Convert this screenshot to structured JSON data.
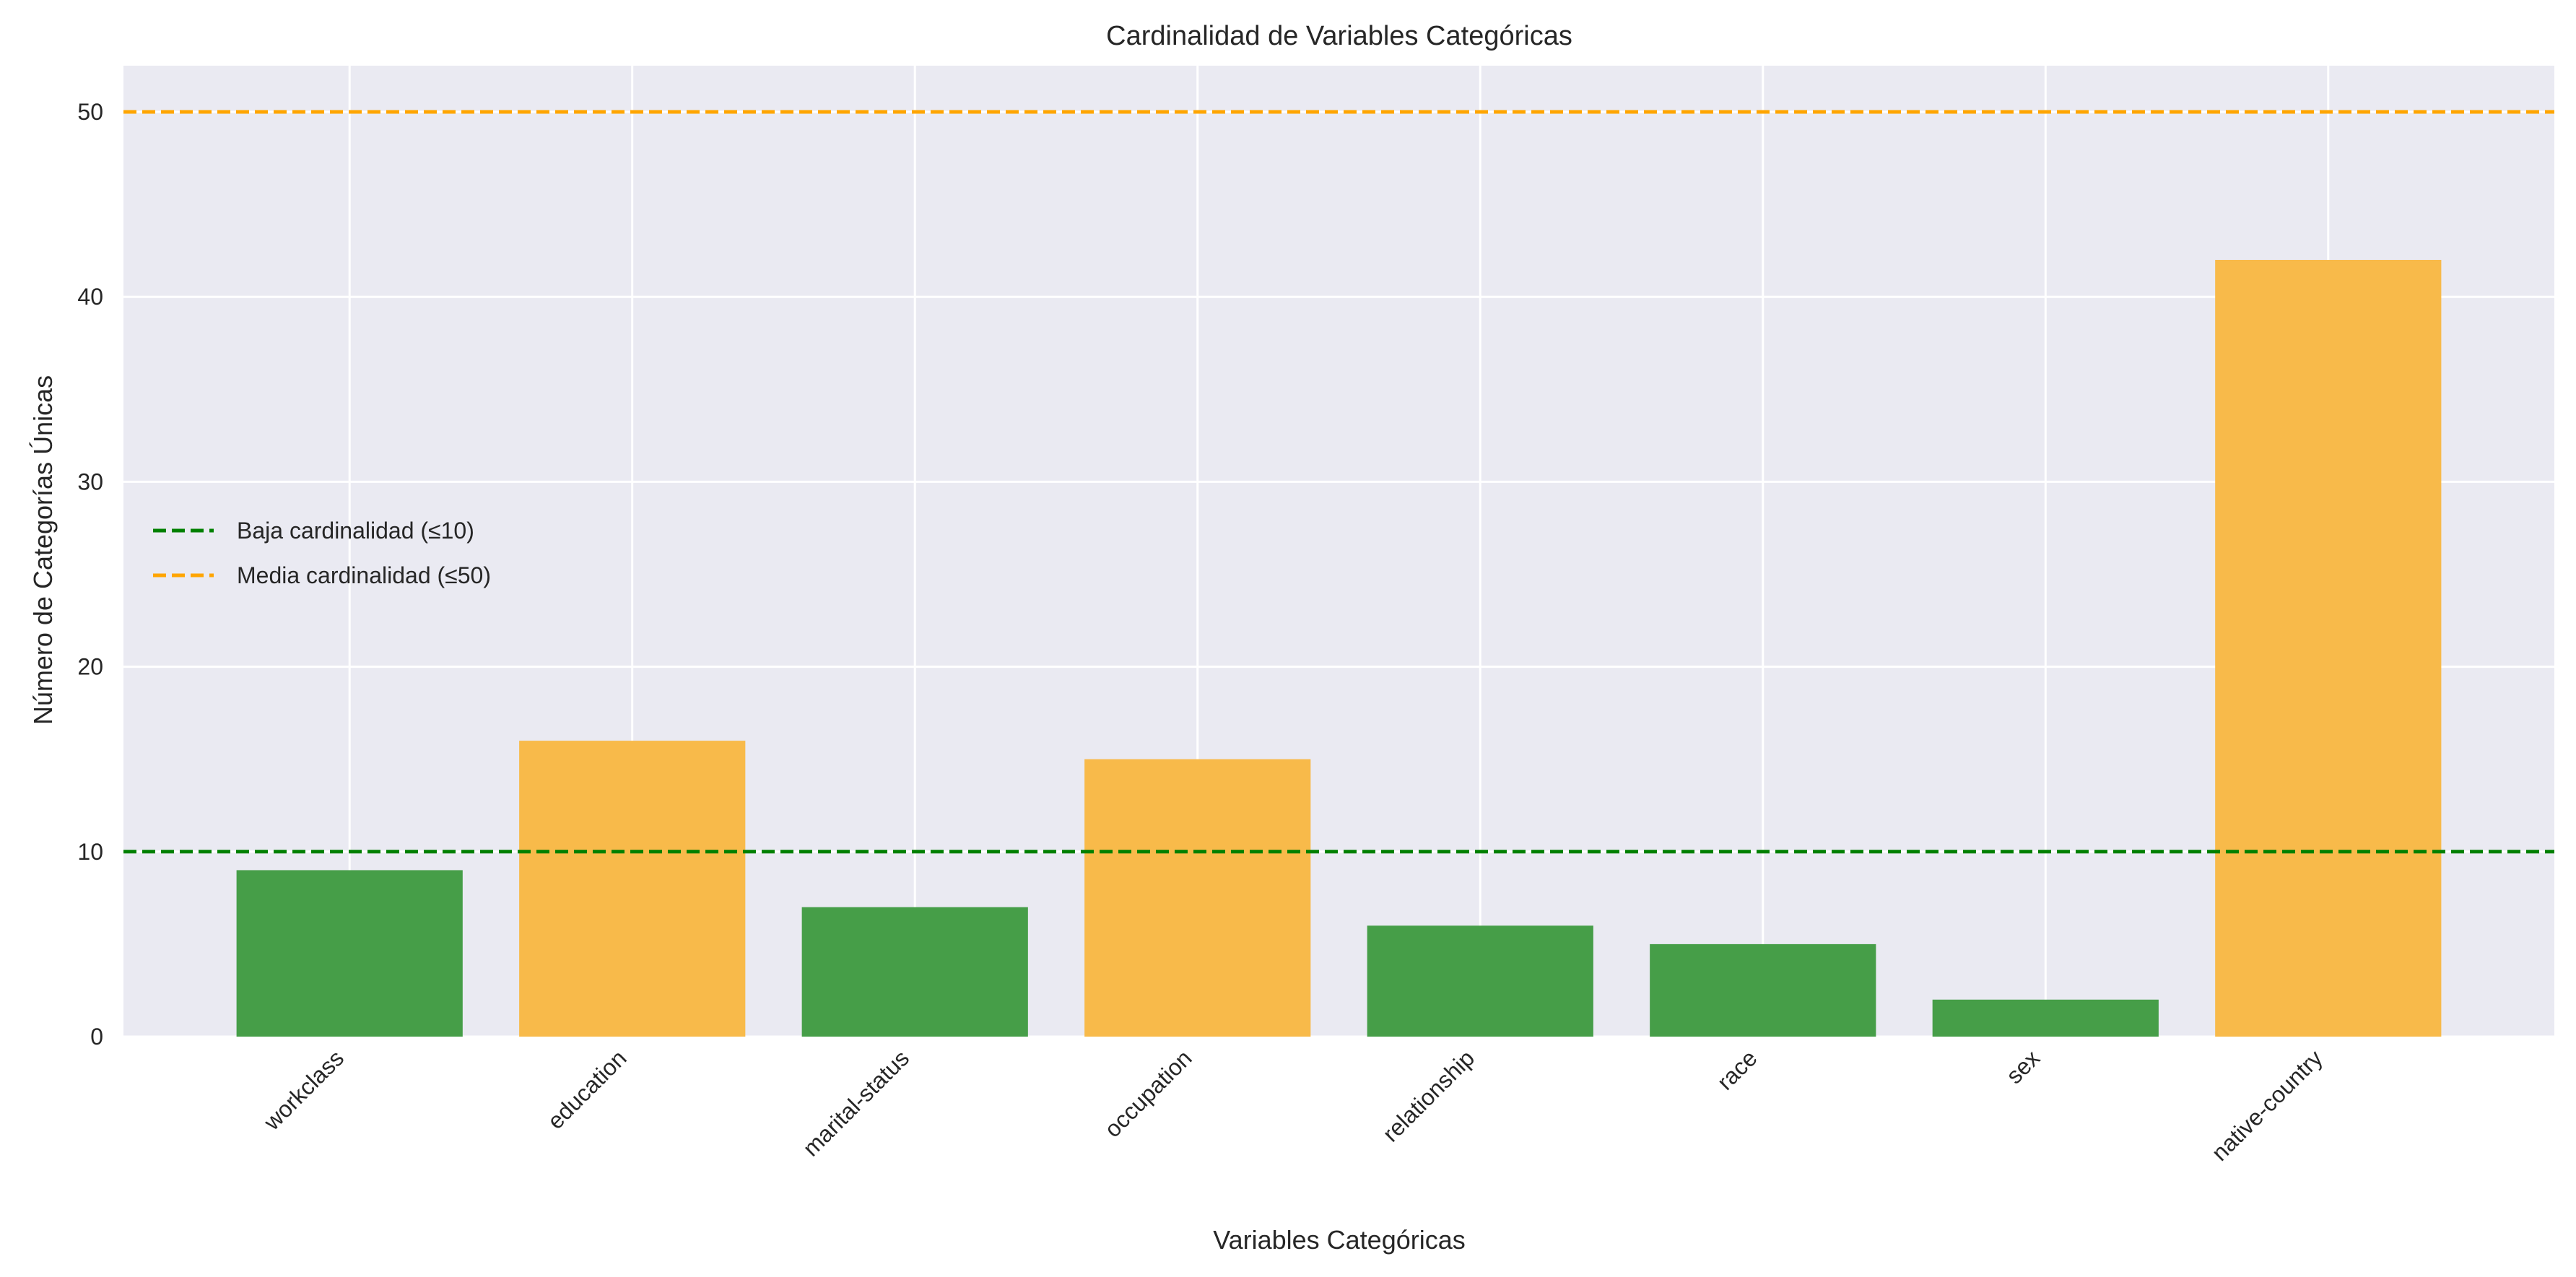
{
  "chart_data": {
    "type": "bar",
    "title": "Cardinalidad de Variables Categóricas",
    "xlabel": "Variables Categóricas",
    "ylabel": "Número de Categorías Únicas",
    "categories": [
      "workclass",
      "education",
      "marital-status",
      "occupation",
      "relationship",
      "race",
      "sex",
      "native-country"
    ],
    "values": [
      9,
      16,
      7,
      15,
      6,
      5,
      2,
      42
    ],
    "bar_colors": [
      "#469e48",
      "#f8ba4a",
      "#469e48",
      "#f8ba4a",
      "#469e48",
      "#469e48",
      "#469e48",
      "#f8ba4a"
    ],
    "ylim": [
      0,
      52.5
    ],
    "yticks": [
      0,
      10,
      20,
      30,
      40,
      50
    ],
    "grid": true,
    "background": "#eaeaf2",
    "reference_lines": [
      {
        "name": "Baja cardinalidad (≤10)",
        "y": 10,
        "color": "#008000",
        "style": "dashed"
      },
      {
        "name": "Media cardinalidad (≤50)",
        "y": 50,
        "color": "#ffa500",
        "style": "dashed"
      }
    ],
    "legend_position": "center-left"
  }
}
